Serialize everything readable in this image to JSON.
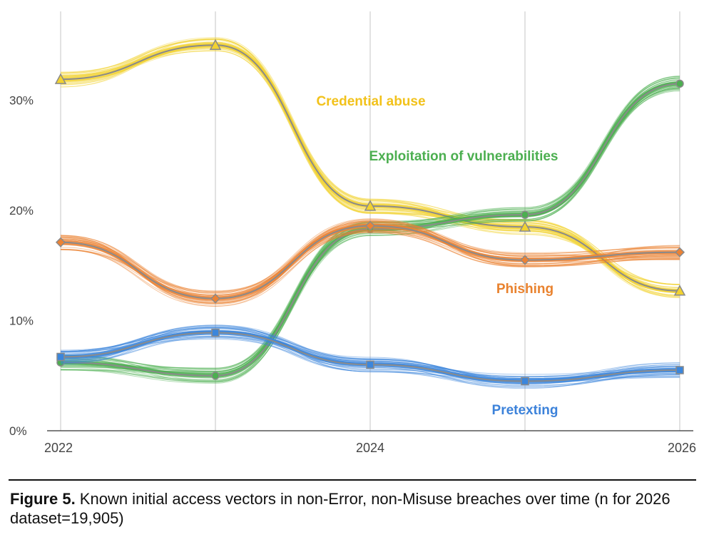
{
  "chart_data": {
    "type": "line",
    "x": [
      2022,
      2023,
      2024,
      2025,
      2026
    ],
    "xticks": [
      "2022",
      "2024",
      "2026"
    ],
    "yticks": [
      "0%",
      "10%",
      "20%",
      "30%"
    ],
    "ylim": [
      0,
      37
    ],
    "grid": "vertical",
    "series": [
      {
        "name": "Credential abuse",
        "color": "#f2d230",
        "label_color": "#f2c21b",
        "marker": "triangle",
        "values": [
          31.9,
          35.0,
          20.4,
          18.5,
          12.7
        ]
      },
      {
        "name": "Exploitation of vulnerabilities",
        "color": "#4caf50",
        "label_color": "#4caf50",
        "marker": "circle",
        "values": [
          6.2,
          5.0,
          18.3,
          19.6,
          31.5
        ]
      },
      {
        "name": "Phishing",
        "color": "#ec8234",
        "label_color": "#e9822e",
        "marker": "diamond",
        "values": [
          17.1,
          12.0,
          18.6,
          15.5,
          16.2
        ]
      },
      {
        "name": "Pretexting",
        "color": "#3b86dc",
        "label_color": "#3c82da",
        "marker": "square",
        "values": [
          6.7,
          8.9,
          6.0,
          4.5,
          5.5
        ]
      }
    ]
  },
  "caption": {
    "figure_label": "Figure 5.",
    "text": " Known initial access vectors in non-Error, non-Misuse breaches over time (n for 2026 dataset=19,905)"
  }
}
